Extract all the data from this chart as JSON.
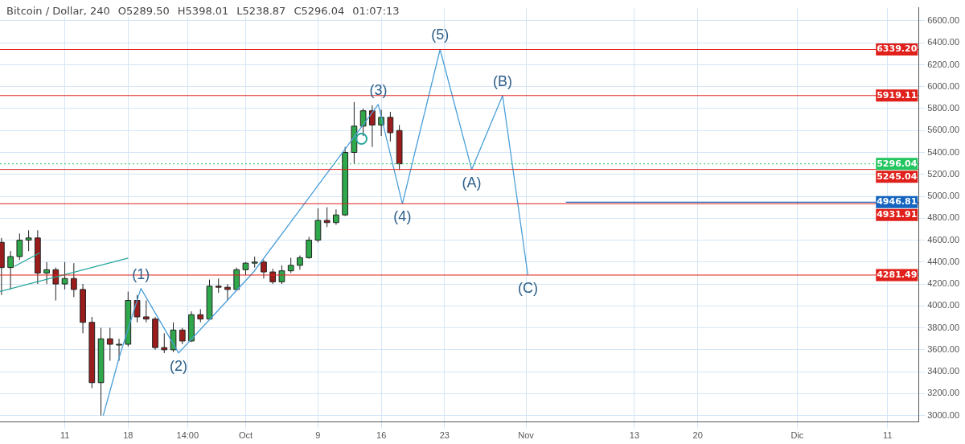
{
  "chart_data": {
    "type": "candlestick",
    "title": "Bitcoin / Dollar, 240",
    "annotations": [
      "O5289.50",
      "H5398.01",
      "L5238.87",
      "C5296.04",
      "01:07:13",
      {
        "text": "(1)",
        "x": "--09-19T10:00",
        "y": 4159
      },
      {
        "text": "(2)",
        "x": "--09-23T14:00",
        "y": 3570
      },
      {
        "text": "(3)",
        "x": "--10-15T16:00",
        "y": 5837
      },
      {
        "text": "(4)",
        "x": "--10-18T08:00",
        "y": 4931.91
      },
      {
        "text": "(5)",
        "x": "--10-22T12:00",
        "y": 6339.2
      },
      {
        "text": "(A)",
        "x": "--10-26T00:00",
        "y": 5245
      },
      {
        "text": "(B)",
        "x": "--10-29T10:00",
        "y": 5919
      },
      {
        "text": "(C)",
        "x": "--11-01T05:00",
        "y": 4281
      },
      {
        "text": "4946.81",
        "x": "--12-14T10:00",
        "y": 4946.81
      }
    ],
    "x": [
      "--09-04",
      "--09-05",
      "--09-06",
      "--09-07",
      "--09-08",
      "--09-09",
      "--09-10",
      "--09-11",
      "--09-12",
      "--09-13",
      "--09-14",
      "--09-15",
      "--09-16",
      "--09-17",
      "--09-18",
      "--09-19",
      "--09-20",
      "--09-21",
      "--09-22",
      "--09-23",
      "--09-24",
      "--09-25",
      "--09-26",
      "--09-27",
      "--09-28",
      "--09-29",
      "--09-30",
      "--10-01",
      "--10-02",
      "--10-03",
      "--10-04",
      "--10-05",
      "--10-06",
      "--10-07",
      "--10-08",
      "--10-09",
      "--10-10",
      "--10-11",
      "--10-12",
      "--10-13",
      "--10-14",
      "--10-15",
      "--10-16",
      "--10-17",
      "--10-18"
    ],
    "ohlc": [
      [
        4580,
        4620,
        4100,
        4350
      ],
      [
        4350,
        4500,
        4150,
        4450
      ],
      [
        4450,
        4660,
        4420,
        4600
      ],
      [
        4600,
        4690,
        4500,
        4620
      ],
      [
        4620,
        4690,
        4200,
        4300
      ],
      [
        4300,
        4400,
        4200,
        4330
      ],
      [
        4330,
        4350,
        4050,
        4200
      ],
      [
        4200,
        4400,
        4150,
        4250
      ],
      [
        4250,
        4390,
        4080,
        4150
      ],
      [
        4150,
        4200,
        3750,
        3850
      ],
      [
        3850,
        3900,
        3250,
        3300
      ],
      [
        3300,
        3800,
        3000,
        3700
      ],
      [
        3700,
        3800,
        3500,
        3650
      ],
      [
        3650,
        3700,
        3500,
        3650
      ],
      [
        3650,
        4130,
        3630,
        4050
      ],
      [
        4050,
        4100,
        3850,
        3900
      ],
      [
        3900,
        4050,
        3850,
        3880
      ],
      [
        3880,
        3900,
        3600,
        3620
      ],
      [
        3620,
        3750,
        3570,
        3600
      ],
      [
        3600,
        3850,
        3580,
        3780
      ],
      [
        3780,
        3800,
        3650,
        3680
      ],
      [
        3680,
        3950,
        3670,
        3920
      ],
      [
        3920,
        3970,
        3850,
        3880
      ],
      [
        3880,
        4240,
        3870,
        4180
      ],
      [
        4180,
        4250,
        4120,
        4170
      ],
      [
        4170,
        4200,
        4050,
        4150
      ],
      [
        4150,
        4350,
        4140,
        4330
      ],
      [
        4330,
        4400,
        4280,
        4390
      ],
      [
        4390,
        4450,
        4350,
        4400
      ],
      [
        4400,
        4420,
        4250,
        4310
      ],
      [
        4310,
        4340,
        4200,
        4220
      ],
      [
        4220,
        4370,
        4200,
        4320
      ],
      [
        4320,
        4440,
        4300,
        4370
      ],
      [
        4370,
        4460,
        4330,
        4440
      ],
      [
        4440,
        4630,
        4430,
        4600
      ],
      [
        4600,
        4890,
        4580,
        4780
      ],
      [
        4780,
        4900,
        4720,
        4760
      ],
      [
        4760,
        4880,
        4740,
        4830
      ],
      [
        4830,
        5450,
        4820,
        5400
      ],
      [
        5400,
        5860,
        5300,
        5640
      ],
      [
        5640,
        5800,
        5550,
        5780
      ],
      [
        5780,
        5830,
        5450,
        5650
      ],
      [
        5650,
        5790,
        5550,
        5720
      ],
      [
        5720,
        5770,
        5500,
        5580
      ],
      [
        5600,
        5650,
        5238.87,
        5296.04
      ]
    ],
    "series": [
      {
        "type": "line",
        "color": "#4a9fd8",
        "x": [
          "--09-15T06:00",
          "--09-17T02:00",
          "--09-19T10:00",
          "--09-23T14:00",
          "--10-01T20:00",
          "--10-15T16:00",
          "--10-18T08:00",
          "--10-22T12:00",
          "--10-26T00:00",
          "--10-29T10:00",
          "--11-01T05:00"
        ],
        "values": [
          3000,
          3549,
          4159,
          3570,
          4305,
          5837,
          4931.91,
          6339.2,
          5245,
          5919,
          4281
        ]
      },
      {
        "type": "line",
        "color": "#26a69a",
        "x": [
          "--09-03T20:00",
          "--09-18T00:00"
        ],
        "values": [
          4131,
          4436
        ]
      },
      {
        "type": "line",
        "color": "#26a69a",
        "x": [
          "--09-05T10:00",
          "--09-08T06:00"
        ],
        "values": [
          4360,
          4485
        ]
      },
      {
        "type": "line",
        "color": "#1565c0",
        "x": [
          "--11-05T10:00",
          "--12-14T10:00"
        ],
        "values": [
          4946.81,
          4946.81
        ]
      }
    ],
    "xlim": [
      "--09-03T20:00",
      "--12-14T10:00"
    ],
    "xticks": [
      {
        "value": "--09-11",
        "label": "11"
      },
      {
        "value": "--09-18",
        "label": "18"
      },
      {
        "value": "--09-24T14:00",
        "label": "14:00"
      },
      {
        "value": "--10-01",
        "label": "Oct"
      },
      {
        "value": "--10-09",
        "label": "9"
      },
      {
        "value": "--10-16",
        "label": "16"
      },
      {
        "value": "--10-23",
        "label": "23"
      },
      {
        "value": "--11-01",
        "label": "Nov"
      },
      {
        "value": "--11-13",
        "label": "13"
      },
      {
        "value": "--11-20",
        "label": "20"
      },
      {
        "value": "--12-01",
        "label": "Dic"
      },
      {
        "value": "--12-11",
        "label": "11"
      }
    ],
    "ylim": [
      2940,
      6720
    ],
    "yticks": [
      {
        "value": 3000,
        "label": "3000.00"
      },
      {
        "value": 3200,
        "label": "3200.00"
      },
      {
        "value": 3400,
        "label": "3400.00"
      },
      {
        "value": 3600,
        "label": "3600.00"
      },
      {
        "value": 3800,
        "label": "3800.00"
      },
      {
        "value": 4000,
        "label": "4000.00"
      },
      {
        "value": 4200,
        "label": "4200.00"
      },
      {
        "value": 4400,
        "label": "4400.00"
      },
      {
        "value": 4600,
        "label": "4600.00"
      },
      {
        "value": 4800,
        "label": "4800.00"
      },
      {
        "value": 5000,
        "label": "5000.00"
      },
      {
        "value": 5200,
        "label": "5200.00"
      },
      {
        "value": 5400,
        "label": "5400.00"
      },
      {
        "value": 5600,
        "label": "5600.00"
      },
      {
        "value": 5800,
        "label": "5800.00"
      },
      {
        "value": 6000,
        "label": "6000.00"
      },
      {
        "value": 6200,
        "label": "6200.00"
      },
      {
        "value": 6400,
        "label": "6400.00"
      },
      {
        "value": 6600,
        "label": "6600.00"
      }
    ],
    "ref_lines": [
      {
        "axis": "y",
        "value": 6339.2,
        "label": "6339.20",
        "color": "#e0201b"
      },
      {
        "axis": "y",
        "value": 5919.11,
        "label": "5919.11",
        "color": "#e0201b"
      },
      {
        "axis": "y",
        "value": 5296.04,
        "label": "5296.04",
        "color": "#22c55e",
        "line_style": "dotted"
      },
      {
        "axis": "y",
        "value": 5245.04,
        "label": "5245.04",
        "color": "#e0201b"
      },
      {
        "axis": "y",
        "value": 4931.91,
        "label": "4931.91",
        "color": "#e0201b"
      },
      {
        "axis": "y",
        "value": 4281.49,
        "label": "4281.49",
        "color": "#e0201b"
      }
    ],
    "grid": true,
    "legend": false
  }
}
